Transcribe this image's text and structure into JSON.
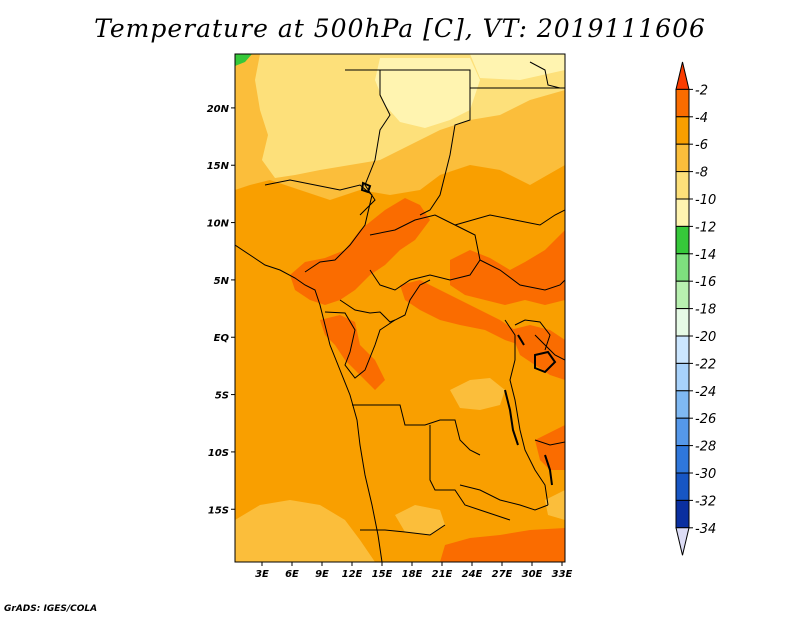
{
  "title": "Temperature at 500hPa [C], VT: 2019111606",
  "footer": "GrADS: IGES/COLA",
  "colors": {
    "base": "#f99f00",
    "warm": "#fa6c00",
    "light": "#fbbe3b",
    "pale": "#fde07a",
    "palest": "#fff4b0",
    "green": "#36c83a",
    "border": "#000000"
  },
  "chart_data": {
    "type": "heatmap",
    "title": "Temperature at 500hPa [C], VT: 2019111606",
    "xlabel": "",
    "ylabel": "",
    "x_ticks": [
      "3E",
      "6E",
      "9E",
      "12E",
      "15E",
      "18E",
      "21E",
      "24E",
      "27E",
      "30E",
      "33E"
    ],
    "y_ticks": [
      "20N",
      "15N",
      "10N",
      "5N",
      "EQ",
      "5S",
      "10S",
      "15S"
    ],
    "x_range_deg": [
      0.3,
      33.3
    ],
    "y_range_deg": [
      -19.6,
      24.7
    ],
    "legend_labels": [
      "-2",
      "-4",
      "-6",
      "-8",
      "-10",
      "-12",
      "-14",
      "-16",
      "-18",
      "-20",
      "-22",
      "-24",
      "-26",
      "-28",
      "-30",
      "-32",
      "-34"
    ],
    "legend_colors": [
      "#fa3c00",
      "#fa6c00",
      "#f99f00",
      "#fbbe3b",
      "#fde07a",
      "#fff4b0",
      "#36c83a",
      "#7ee07e",
      "#b8f0b0",
      "#e6fae6",
      "#cbe6ff",
      "#a8d2fb",
      "#7fb9f3",
      "#5598ea",
      "#2f77db",
      "#1756c4",
      "#0a2fa0",
      "#0a0f66",
      "#dcdcf5"
    ],
    "legend_position": "right",
    "dominant_range": "-4 to -6"
  }
}
